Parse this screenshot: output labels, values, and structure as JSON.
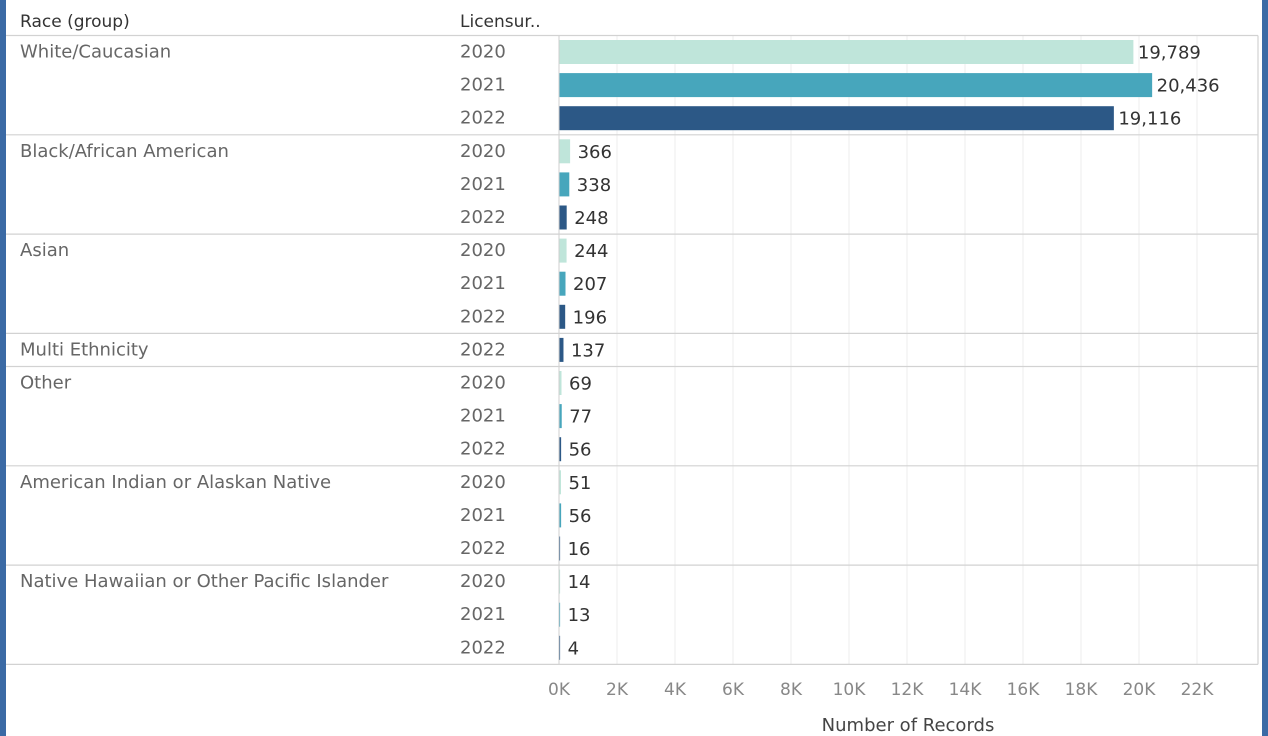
{
  "chart_data": {
    "type": "bar",
    "orientation": "horizontal",
    "headers": {
      "group": "Race (group)",
      "year": "Licensur.."
    },
    "xlabel": "Number of Records",
    "xlim": [
      0,
      24000
    ],
    "xticks": [
      0,
      2000,
      4000,
      6000,
      8000,
      10000,
      12000,
      14000,
      16000,
      18000,
      20000,
      22000
    ],
    "xtick_labels": [
      "0K",
      "2K",
      "4K",
      "6K",
      "8K",
      "10K",
      "12K",
      "14K",
      "16K",
      "18K",
      "20K",
      "22K"
    ],
    "grid": true,
    "year_colors": {
      "2020": "#bfe5da",
      "2021": "#47a6bc",
      "2022": "#2c5886"
    },
    "groups": [
      {
        "name": "White/Caucasian",
        "rows": [
          {
            "year": "2020",
            "value": 19789,
            "label": "19,789"
          },
          {
            "year": "2021",
            "value": 20436,
            "label": "20,436"
          },
          {
            "year": "2022",
            "value": 19116,
            "label": "19,116"
          }
        ]
      },
      {
        "name": "Black/African American",
        "rows": [
          {
            "year": "2020",
            "value": 366,
            "label": "366"
          },
          {
            "year": "2021",
            "value": 338,
            "label": "338"
          },
          {
            "year": "2022",
            "value": 248,
            "label": "248"
          }
        ]
      },
      {
        "name": "Asian",
        "rows": [
          {
            "year": "2020",
            "value": 244,
            "label": "244"
          },
          {
            "year": "2021",
            "value": 207,
            "label": "207"
          },
          {
            "year": "2022",
            "value": 196,
            "label": "196"
          }
        ]
      },
      {
        "name": "Multi Ethnicity",
        "rows": [
          {
            "year": "2022",
            "value": 137,
            "label": "137"
          }
        ]
      },
      {
        "name": "Other",
        "rows": [
          {
            "year": "2020",
            "value": 69,
            "label": "69"
          },
          {
            "year": "2021",
            "value": 77,
            "label": "77"
          },
          {
            "year": "2022",
            "value": 56,
            "label": "56"
          }
        ]
      },
      {
        "name": "American Indian or Alaskan Native",
        "rows": [
          {
            "year": "2020",
            "value": 51,
            "label": "51"
          },
          {
            "year": "2021",
            "value": 56,
            "label": "56"
          },
          {
            "year": "2022",
            "value": 16,
            "label": "16"
          }
        ]
      },
      {
        "name": "Native Hawaiian or Other Pacific Islander",
        "rows": [
          {
            "year": "2020",
            "value": 14,
            "label": "14"
          },
          {
            "year": "2021",
            "value": 13,
            "label": "13"
          },
          {
            "year": "2022",
            "value": 4,
            "label": "4"
          }
        ]
      }
    ]
  }
}
